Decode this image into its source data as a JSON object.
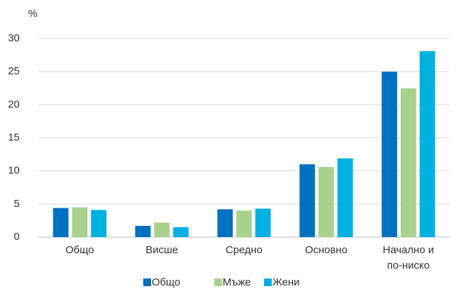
{
  "chart_data": {
    "type": "bar",
    "y_label": "%",
    "categories": [
      "Общо",
      "Висше",
      "Средно",
      "Основно",
      "Начално и\nпо-ниско"
    ],
    "series": [
      {
        "name": "Общо",
        "color": "#0070c0",
        "values": [
          4.4,
          1.7,
          4.2,
          11.0,
          25.0
        ]
      },
      {
        "name": "Мъже",
        "color": "#a9d18e",
        "values": [
          4.5,
          2.2,
          4.0,
          10.6,
          22.5
        ]
      },
      {
        "name": "Жени",
        "color": "#00b0e0",
        "values": [
          4.1,
          1.5,
          4.3,
          11.9,
          28.1
        ]
      }
    ],
    "ylim": [
      0,
      30
    ],
    "yticks": [
      0,
      5,
      10,
      15,
      20,
      25,
      30
    ],
    "grid": true,
    "legend": "bottom"
  }
}
